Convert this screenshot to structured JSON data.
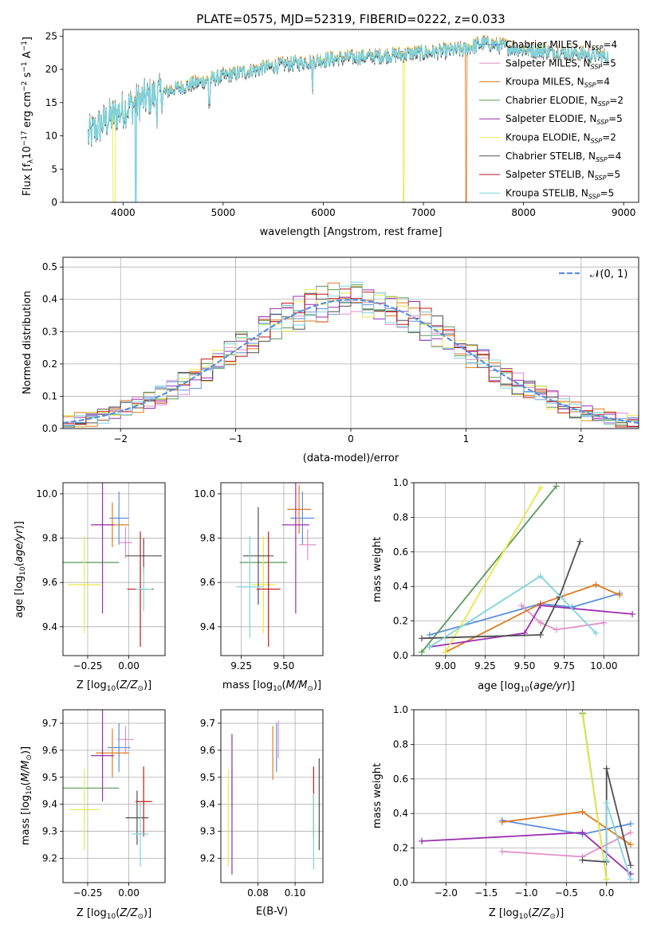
{
  "title": "PLATE=0575, MJD=52319, FIBERID=0222, z=0.033",
  "colors": {
    "Chabrier MILES": "#5b8fe0",
    "Salpeter MILES": "#e08fc8",
    "Kroupa MILES": "#e07a1f",
    "Chabrier ELODIE": "#5a9a5a",
    "Salpeter ELODIE": "#9b2fb0",
    "Kroupa ELODIE": "#e8e84a",
    "Chabrier STELIB": "#505050",
    "Salpeter STELIB": "#c01818",
    "Kroupa STELIB": "#7fd4dc",
    "data": "#808080",
    "normal": "#5b8fe0"
  },
  "chart_data": [
    {
      "type": "line",
      "title": "PLATE=0575, MJD=52319, FIBERID=0222, z=0.033",
      "xlabel": "wavelength [Angstrom, rest frame]",
      "ylabel": "Flux [fλ10⁻¹⁷ erg cm⁻² s⁻¹ A⁻¹]",
      "xlim": [
        3400,
        9150
      ],
      "ylim": [
        0,
        26
      ],
      "xticks": [
        4000,
        5000,
        6000,
        7000,
        8000,
        9000
      ],
      "yticks": [
        0,
        5,
        10,
        15,
        20,
        25
      ],
      "legend_position": "top-right",
      "legend": [
        {
          "base": "Chabrier MILES, N",
          "n": "4"
        },
        {
          "base": "Salpeter MILES, N",
          "n": "5"
        },
        {
          "base": "Kroupa MILES, N",
          "n": "4"
        },
        {
          "base": "Chabrier ELODIE, N",
          "n": "2"
        },
        {
          "base": "Salpeter ELODIE, N",
          "n": "5"
        },
        {
          "base": "Kroupa ELODIE, N",
          "n": "2"
        },
        {
          "base": "Chabrier STELIB, N",
          "n": "4"
        },
        {
          "base": "Salpeter STELIB, N",
          "n": "5"
        },
        {
          "base": "Kroupa STELIB, N",
          "n": "5"
        }
      ],
      "legend_sub": "SSP",
      "continuum": {
        "x": [
          3650,
          3800,
          4000,
          4200,
          4500,
          5000,
          5500,
          6000,
          6500,
          7000,
          7400,
          7600,
          8000,
          8500,
          8800
        ],
        "y": [
          10,
          12,
          14,
          15.5,
          17,
          19,
          20.5,
          21.5,
          22,
          22.5,
          23,
          24,
          23,
          22.5,
          22
        ]
      },
      "dropouts": [
        {
          "series": "Kroupa ELODIE",
          "from": 3900,
          "to": 3920
        },
        {
          "series": "Kroupa STELIB",
          "from": 4120,
          "to": 4130
        },
        {
          "series": "Kroupa ELODIE",
          "from": 6800,
          "to": 6810
        },
        {
          "series": "Kroupa MILES",
          "from": 7420,
          "to": 7430
        }
      ]
    },
    {
      "type": "bar",
      "xlabel": "(data-model)/error",
      "ylabel": "Normed distribution",
      "xlim": [
        -2.5,
        2.5
      ],
      "ylim": [
        0,
        0.53
      ],
      "xticks": [
        -2,
        -1,
        0,
        1,
        2
      ],
      "yticks": [
        0.0,
        0.1,
        0.2,
        0.3,
        0.4,
        0.5
      ],
      "bin_width": 0.1,
      "legend": "𝒩(0, 1)",
      "normal": {
        "mu": 0,
        "sigma": 1
      }
    },
    {
      "type": "scatter",
      "xlabel": "Z [log10(Z/Z⊙)]",
      "ylabel": "age  [log10(age/yr)]",
      "xlim": [
        -0.4,
        0.22
      ],
      "ylim": [
        9.27,
        10.05
      ],
      "xticks": [
        -0.25,
        0.0
      ],
      "yticks": [
        9.4,
        9.6,
        9.8,
        10.0
      ],
      "points": [
        {
          "series": "Chabrier MILES",
          "x": -0.06,
          "y": 9.89,
          "xerr": 0.06,
          "yerr": 0.12
        },
        {
          "series": "Salpeter MILES",
          "x": -0.02,
          "y": 9.78,
          "xerr": 0.04,
          "yerr": 0.07
        },
        {
          "series": "Kroupa MILES",
          "x": -0.1,
          "y": 9.86,
          "xerr": 0.1,
          "yerr": 0.1
        },
        {
          "series": "Chabrier ELODIE",
          "x": -0.26,
          "y": 9.69,
          "xerr": 0.2,
          "yerr": 0.0
        },
        {
          "series": "Salpeter ELODIE",
          "x": -0.16,
          "y": 9.86,
          "xerr": 0.07,
          "yerr": 0.4
        },
        {
          "series": "Kroupa ELODIE",
          "x": -0.27,
          "y": 9.59,
          "xerr": 0.1,
          "yerr": 0.22
        },
        {
          "series": "Chabrier STELIB",
          "x": 0.09,
          "y": 9.72,
          "xerr": 0.11,
          "yerr": 0.08
        },
        {
          "series": "Salpeter STELIB",
          "x": 0.07,
          "y": 9.57,
          "xerr": 0.08,
          "yerr": 0.26
        },
        {
          "series": "Kroupa STELIB",
          "x": 0.09,
          "y": 9.57,
          "xerr": 0.05,
          "yerr": 0.1
        }
      ]
    },
    {
      "type": "scatter",
      "xlabel": "mass [log10(M/M⊙)]",
      "ylabel": "",
      "xlim": [
        9.13,
        9.73
      ],
      "ylim": [
        9.27,
        10.05
      ],
      "xticks": [
        9.25,
        9.5
      ],
      "yticks": [
        9.4,
        9.6,
        9.8,
        10.0
      ],
      "points": [
        {
          "series": "Chabrier MILES",
          "x": 9.61,
          "y": 9.89,
          "xerr": 0.07,
          "yerr": 0.12
        },
        {
          "series": "Salpeter MILES",
          "x": 9.64,
          "y": 9.77,
          "xerr": 0.05,
          "yerr": 0.07
        },
        {
          "series": "Kroupa MILES",
          "x": 9.59,
          "y": 9.93,
          "xerr": 0.07,
          "yerr": 0.11
        },
        {
          "series": "Chabrier ELODIE",
          "x": 9.38,
          "y": 9.69,
          "xerr": 0.14,
          "yerr": 0.0
        },
        {
          "series": "Salpeter ELODIE",
          "x": 9.57,
          "y": 9.86,
          "xerr": 0.08,
          "yerr": 0.4
        },
        {
          "series": "Kroupa ELODIE",
          "x": 9.38,
          "y": 9.59,
          "xerr": 0.07,
          "yerr": 0.22
        },
        {
          "series": "Chabrier STELIB",
          "x": 9.35,
          "y": 9.72,
          "xerr": 0.09,
          "yerr": 0.22
        },
        {
          "series": "Salpeter STELIB",
          "x": 9.41,
          "y": 9.57,
          "xerr": 0.07,
          "yerr": 0.26
        },
        {
          "series": "Kroupa STELIB",
          "x": 9.3,
          "y": 9.58,
          "xerr": 0.08,
          "yerr": 0.23
        }
      ]
    },
    {
      "type": "line",
      "xlabel": "age  [log10(age/yr)]",
      "ylabel": "mass weight",
      "xlim": [
        8.8,
        10.22
      ],
      "ylim": [
        0,
        1.0
      ],
      "xticks": [
        9.0,
        9.25,
        9.5,
        9.75,
        10.0
      ],
      "yticks": [
        0.0,
        0.2,
        0.4,
        0.6,
        0.8,
        1.0
      ],
      "series": [
        {
          "name": "Chabrier MILES",
          "x": [
            8.9,
            9.6,
            9.8,
            10.1
          ],
          "y": [
            0.12,
            0.3,
            0.28,
            0.36
          ]
        },
        {
          "name": "Salpeter MILES",
          "x": [
            9.48,
            9.6,
            9.7,
            10.0
          ],
          "y": [
            0.29,
            0.19,
            0.15,
            0.19
          ]
        },
        {
          "name": "Kroupa MILES",
          "x": [
            9.0,
            9.6,
            9.95,
            10.1
          ],
          "y": [
            0.02,
            0.3,
            0.41,
            0.35
          ]
        },
        {
          "name": "Chabrier ELODIE",
          "x": [
            8.85,
            9.7
          ],
          "y": [
            0.02,
            0.98
          ]
        },
        {
          "name": "Salpeter ELODIE",
          "x": [
            8.9,
            9.5,
            9.6,
            10.18
          ],
          "y": [
            0.05,
            0.13,
            0.29,
            0.24
          ]
        },
        {
          "name": "Kroupa ELODIE",
          "x": [
            9.0,
            9.6
          ],
          "y": [
            0.02,
            0.97
          ]
        },
        {
          "name": "Chabrier STELIB",
          "x": [
            8.85,
            9.6,
            9.72,
            9.85
          ],
          "y": [
            0.1,
            0.12,
            0.34,
            0.66
          ]
        },
        {
          "name": "Kroupa STELIB",
          "x": [
            8.9,
            9.6,
            9.95
          ],
          "y": [
            0.05,
            0.46,
            0.13
          ]
        }
      ]
    },
    {
      "type": "scatter",
      "xlabel": "Z [log10(Z/Z⊙)]",
      "ylabel": "mass [log10(M/M⊙)]",
      "xlim": [
        -0.4,
        0.22
      ],
      "ylim": [
        9.11,
        9.75
      ],
      "xticks": [
        -0.25,
        0.0
      ],
      "yticks": [
        9.2,
        9.3,
        9.4,
        9.5,
        9.6,
        9.7
      ],
      "points": [
        {
          "series": "Chabrier MILES",
          "x": -0.06,
          "y": 9.61,
          "xerr": 0.07,
          "yerr": 0.09
        },
        {
          "series": "Salpeter MILES",
          "x": -0.02,
          "y": 9.64,
          "xerr": 0.05,
          "yerr": 0.05
        },
        {
          "series": "Kroupa MILES",
          "x": -0.1,
          "y": 9.59,
          "xerr": 0.1,
          "yerr": 0.09
        },
        {
          "series": "Chabrier ELODIE",
          "x": -0.26,
          "y": 9.46,
          "xerr": 0.2,
          "yerr": 0.0
        },
        {
          "series": "Salpeter ELODIE",
          "x": -0.16,
          "y": 9.58,
          "xerr": 0.07,
          "yerr": 0.17
        },
        {
          "series": "Kroupa ELODIE",
          "x": -0.27,
          "y": 9.38,
          "xerr": 0.09,
          "yerr": 0.15
        },
        {
          "series": "Chabrier STELIB",
          "x": 0.05,
          "y": 9.35,
          "xerr": 0.07,
          "yerr": 0.1
        },
        {
          "series": "Salpeter STELIB",
          "x": 0.09,
          "y": 9.41,
          "xerr": 0.05,
          "yerr": 0.13
        },
        {
          "series": "Kroupa STELIB",
          "x": 0.07,
          "y": 9.29,
          "xerr": 0.05,
          "yerr": 0.12
        }
      ]
    },
    {
      "type": "scatter",
      "xlabel": "E(B-V)",
      "ylabel": "",
      "xlim": [
        0.06,
        0.115
      ],
      "ylim": [
        9.11,
        9.75
      ],
      "xticks": [
        0.08,
        0.1
      ],
      "yticks": [
        9.2,
        9.3,
        9.4,
        9.5,
        9.6,
        9.7
      ],
      "points": [
        {
          "series": "Chabrier MILES",
          "x": 0.09,
          "y": 9.61,
          "yerr": 0.09
        },
        {
          "series": "Salpeter MILES",
          "x": 0.091,
          "y": 9.64,
          "yerr": 0.07
        },
        {
          "series": "Kroupa MILES",
          "x": 0.088,
          "y": 9.59,
          "yerr": 0.1
        },
        {
          "series": "Chabrier ELODIE",
          "x": 0.066,
          "y": 9.46,
          "yerr": 0.07
        },
        {
          "series": "Salpeter ELODIE",
          "x": 0.066,
          "y": 9.4,
          "yerr": 0.26
        },
        {
          "series": "Kroupa ELODIE",
          "x": 0.064,
          "y": 9.35,
          "yerr": 0.18
        },
        {
          "series": "Chabrier STELIB",
          "x": 0.113,
          "y": 9.4,
          "yerr": 0.17
        },
        {
          "series": "Salpeter STELIB",
          "x": 0.11,
          "y": 9.41,
          "yerr": 0.13
        },
        {
          "series": "Kroupa STELIB",
          "x": 0.11,
          "y": 9.3,
          "yerr": 0.14
        }
      ]
    },
    {
      "type": "line",
      "xlabel": "Z [log10(Z/Z⊙)]",
      "ylabel": "mass weight",
      "xlim": [
        -2.4,
        0.4
      ],
      "ylim": [
        0,
        1.0
      ],
      "xticks": [
        -2.0,
        -1.5,
        -1.0,
        -0.5,
        0.0
      ],
      "yticks": [
        0.0,
        0.2,
        0.4,
        0.6,
        0.8,
        1.0
      ],
      "series": [
        {
          "name": "Chabrier MILES",
          "x": [
            -1.3,
            -0.3,
            0.3
          ],
          "y": [
            0.36,
            0.28,
            0.34
          ]
        },
        {
          "name": "Salpeter MILES",
          "x": [
            -1.3,
            -0.3,
            0.3
          ],
          "y": [
            0.18,
            0.15,
            0.29
          ]
        },
        {
          "name": "Kroupa MILES",
          "x": [
            -1.3,
            -0.3,
            0.3
          ],
          "y": [
            0.35,
            0.41,
            0.22
          ]
        },
        {
          "name": "Chabrier ELODIE",
          "x": [
            -0.3,
            0.0
          ],
          "y": [
            0.98,
            0.02
          ]
        },
        {
          "name": "Salpeter ELODIE",
          "x": [
            -2.3,
            -0.3,
            0.3
          ],
          "y": [
            0.24,
            0.29,
            0.05
          ]
        },
        {
          "name": "Kroupa ELODIE",
          "x": [
            -0.3,
            0.0
          ],
          "y": [
            0.97,
            0.02
          ]
        },
        {
          "name": "Chabrier STELIB",
          "x": [
            -0.3,
            0.0,
            0.0,
            0.3
          ],
          "y": [
            0.13,
            0.12,
            0.66,
            0.1
          ]
        },
        {
          "name": "Kroupa STELIB",
          "x": [
            0.0,
            0.0,
            0.3
          ],
          "y": [
            0.13,
            0.46,
            0.02
          ]
        }
      ]
    }
  ]
}
